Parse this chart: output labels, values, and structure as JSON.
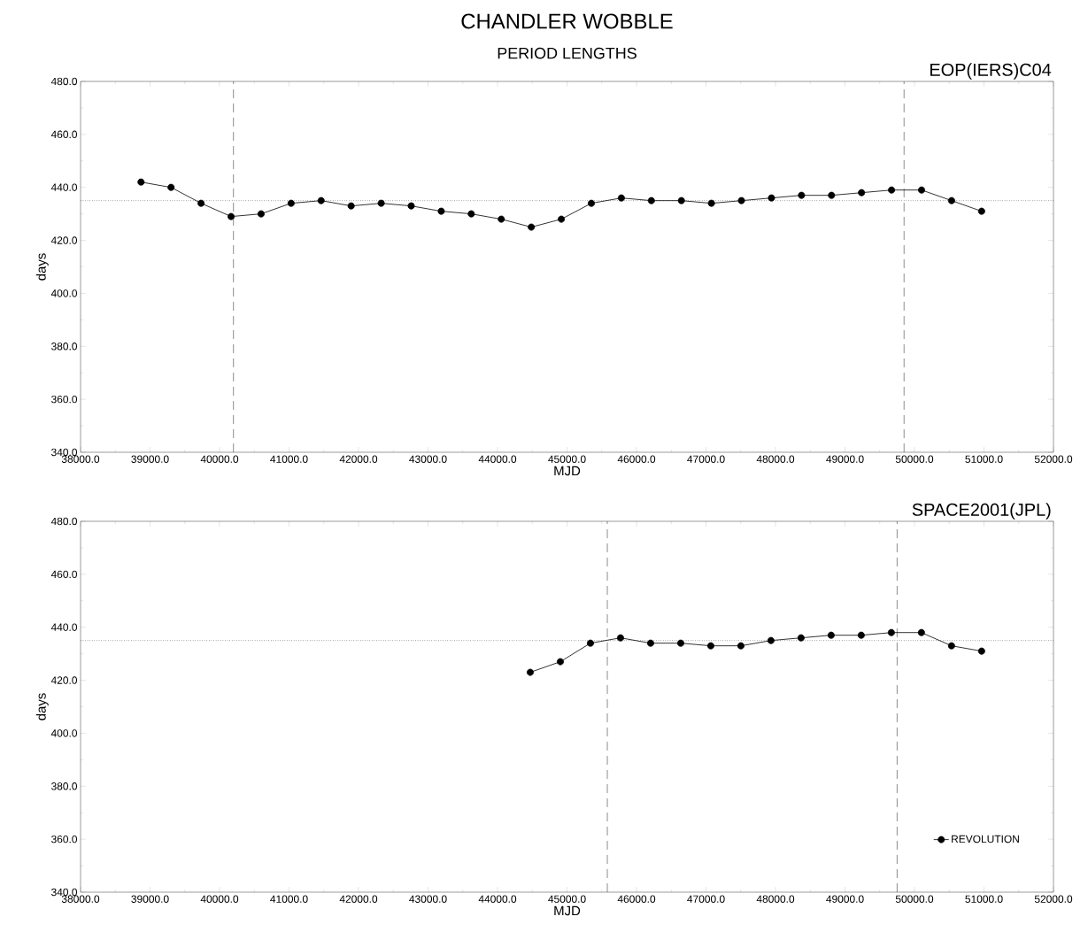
{
  "chart_data": [
    {
      "type": "line",
      "title": "CHANDLER WOBBLE",
      "subtitle": "PERIOD LENGTHS",
      "annotations": [
        "EOP(IERS)C04"
      ],
      "xlabel": "MJD",
      "ylabel": "days",
      "marker": "circle",
      "line_style": "solid",
      "legend": false,
      "x": [
        38870,
        39302,
        39734,
        40166,
        40598,
        41030,
        41462,
        41894,
        42326,
        42758,
        43190,
        43622,
        44054,
        44486,
        44918,
        45350,
        45782,
        46214,
        46646,
        47078,
        47510,
        47942,
        48374,
        48806,
        49238,
        49670,
        50102,
        50534,
        50966
      ],
      "series": [
        {
          "color": "#000000",
          "values": [
            442,
            440,
            434,
            429,
            430,
            434,
            435,
            433,
            434,
            433,
            431,
            430,
            428,
            425,
            428,
            434,
            436,
            435,
            435,
            434,
            435,
            436,
            437,
            437,
            438,
            439,
            439,
            435,
            431
          ]
        }
      ],
      "ref_lines": [
        {
          "axis": "y",
          "value": 435,
          "line_style": "dotted"
        },
        {
          "axis": "x",
          "value": 40200,
          "line_style": "dashed"
        },
        {
          "axis": "x",
          "value": 49850,
          "line_style": "dashed"
        }
      ],
      "xlim": [
        38000,
        52000
      ],
      "ylim": [
        340,
        480
      ],
      "xticks": [
        {
          "value": 38000,
          "label": "38000.0"
        },
        {
          "value": 39000,
          "label": "39000.0"
        },
        {
          "value": 40000,
          "label": "40000.0"
        },
        {
          "value": 41000,
          "label": "41000.0"
        },
        {
          "value": 42000,
          "label": "42000.0"
        },
        {
          "value": 43000,
          "label": "43000.0"
        },
        {
          "value": 44000,
          "label": "44000.0"
        },
        {
          "value": 45000,
          "label": "45000.0"
        },
        {
          "value": 46000,
          "label": "46000.0"
        },
        {
          "value": 47000,
          "label": "47000.0"
        },
        {
          "value": 48000,
          "label": "48000.0"
        },
        {
          "value": 49000,
          "label": "49000.0"
        },
        {
          "value": 50000,
          "label": "50000.0"
        },
        {
          "value": 51000,
          "label": "51000.0"
        },
        {
          "value": 52000,
          "label": "52000.0"
        }
      ],
      "yticks": [
        {
          "value": 340,
          "label": "340.0"
        },
        {
          "value": 360,
          "label": "360.0"
        },
        {
          "value": 380,
          "label": "380.0"
        },
        {
          "value": 400,
          "label": "400.0"
        },
        {
          "value": 420,
          "label": "420.0"
        },
        {
          "value": 440,
          "label": "440.0"
        },
        {
          "value": 460,
          "label": "460.0"
        },
        {
          "value": 480,
          "label": "480.0"
        }
      ]
    },
    {
      "type": "line",
      "annotations": [
        "SPACE2001(JPL)"
      ],
      "xlabel": "MJD",
      "ylabel": "days",
      "marker": "circle",
      "line_style": "solid",
      "legend": "bottom right",
      "x": [
        44471,
        44904,
        45337,
        45770,
        46203,
        46636,
        47069,
        47502,
        47935,
        48368,
        48801,
        49234,
        49667,
        50100,
        50533,
        50966
      ],
      "series": [
        {
          "name": "REVOLUTION",
          "color": "#000000",
          "values": [
            423,
            427,
            434,
            436,
            434,
            434,
            433,
            433,
            435,
            436,
            437,
            437,
            438,
            438,
            433,
            431
          ]
        }
      ],
      "ref_lines": [
        {
          "axis": "y",
          "value": 435,
          "line_style": "dotted"
        },
        {
          "axis": "x",
          "value": 45580,
          "line_style": "dashed"
        },
        {
          "axis": "x",
          "value": 49750,
          "line_style": "dashed"
        }
      ],
      "xlim": [
        38000,
        52000
      ],
      "ylim": [
        340,
        480
      ],
      "xticks": [
        {
          "value": 38000,
          "label": "38000.0"
        },
        {
          "value": 39000,
          "label": "39000.0"
        },
        {
          "value": 40000,
          "label": "40000.0"
        },
        {
          "value": 41000,
          "label": "41000.0"
        },
        {
          "value": 42000,
          "label": "42000.0"
        },
        {
          "value": 43000,
          "label": "43000.0"
        },
        {
          "value": 44000,
          "label": "44000.0"
        },
        {
          "value": 45000,
          "label": "45000.0"
        },
        {
          "value": 46000,
          "label": "46000.0"
        },
        {
          "value": 47000,
          "label": "47000.0"
        },
        {
          "value": 48000,
          "label": "48000.0"
        },
        {
          "value": 49000,
          "label": "49000.0"
        },
        {
          "value": 50000,
          "label": "50000.0"
        },
        {
          "value": 51000,
          "label": "51000.0"
        },
        {
          "value": 52000,
          "label": "52000.0"
        }
      ],
      "yticks": [
        {
          "value": 340,
          "label": "340.0"
        },
        {
          "value": 360,
          "label": "360.0"
        },
        {
          "value": 380,
          "label": "380.0"
        },
        {
          "value": 400,
          "label": "400.0"
        },
        {
          "value": 420,
          "label": "420.0"
        },
        {
          "value": 440,
          "label": "440.0"
        },
        {
          "value": 460,
          "label": "460.0"
        },
        {
          "value": 480,
          "label": "480.0"
        }
      ]
    }
  ]
}
